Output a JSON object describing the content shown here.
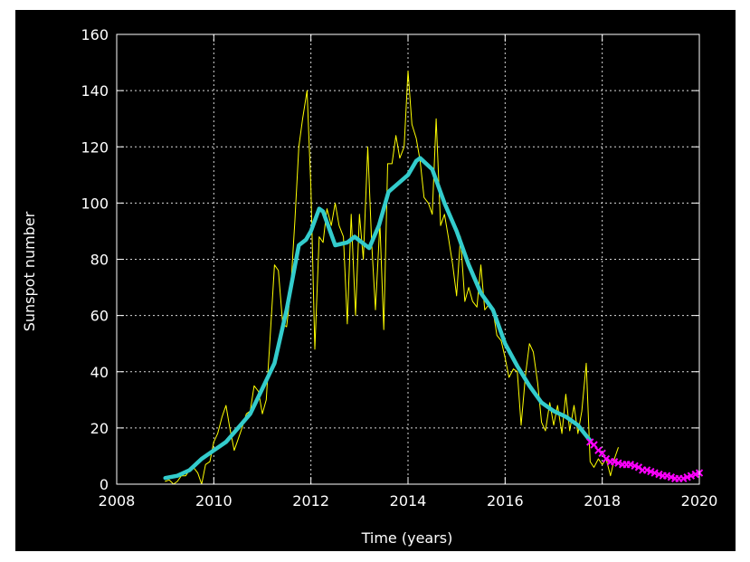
{
  "chart_data": {
    "type": "line",
    "title": "",
    "xlabel": "Time (years)",
    "ylabel": "Sunspot number",
    "xlim": [
      2008,
      2020
    ],
    "ylim": [
      0,
      160
    ],
    "grid": true,
    "x_ticks": [
      "2008",
      "2010",
      "2012",
      "2014",
      "2016",
      "2018",
      "2020"
    ],
    "y_ticks": [
      "0",
      "20",
      "40",
      "60",
      "80",
      "100",
      "120",
      "140",
      "160"
    ],
    "colors": {
      "background": "#000000",
      "axes": "#ffffff",
      "grid": "#ffffff"
    },
    "series": [
      {
        "style": "thin-line",
        "color": "#ffff00",
        "points": [
          [
            2009.0,
            1
          ],
          [
            2009.08,
            1.5
          ],
          [
            2009.17,
            0
          ],
          [
            2009.25,
            1
          ],
          [
            2009.33,
            3
          ],
          [
            2009.42,
            3
          ],
          [
            2009.5,
            5
          ],
          [
            2009.58,
            6
          ],
          [
            2009.67,
            4
          ],
          [
            2009.75,
            0
          ],
          [
            2009.83,
            7
          ],
          [
            2009.92,
            8
          ],
          [
            2010.0,
            15
          ],
          [
            2010.08,
            18
          ],
          [
            2010.17,
            24
          ],
          [
            2010.25,
            28
          ],
          [
            2010.33,
            20
          ],
          [
            2010.42,
            12
          ],
          [
            2010.5,
            16
          ],
          [
            2010.58,
            20
          ],
          [
            2010.67,
            25
          ],
          [
            2010.75,
            26
          ],
          [
            2010.83,
            35
          ],
          [
            2010.92,
            33
          ],
          [
            2011.0,
            25
          ],
          [
            2011.08,
            30
          ],
          [
            2011.17,
            55
          ],
          [
            2011.25,
            78
          ],
          [
            2011.33,
            76
          ],
          [
            2011.42,
            57
          ],
          [
            2011.5,
            56
          ],
          [
            2011.58,
            68
          ],
          [
            2011.67,
            94
          ],
          [
            2011.75,
            120
          ],
          [
            2011.83,
            130
          ],
          [
            2011.92,
            140
          ],
          [
            2012.0,
            105
          ],
          [
            2012.08,
            48
          ],
          [
            2012.17,
            88
          ],
          [
            2012.25,
            86
          ],
          [
            2012.33,
            98
          ],
          [
            2012.42,
            92
          ],
          [
            2012.5,
            100
          ],
          [
            2012.58,
            92
          ],
          [
            2012.67,
            88
          ],
          [
            2012.75,
            57
          ],
          [
            2012.83,
            96
          ],
          [
            2012.92,
            60
          ],
          [
            2013.0,
            96
          ],
          [
            2013.08,
            80
          ],
          [
            2013.17,
            120
          ],
          [
            2013.25,
            86
          ],
          [
            2013.33,
            62
          ],
          [
            2013.42,
            93
          ],
          [
            2013.5,
            55
          ],
          [
            2013.58,
            114
          ],
          [
            2013.67,
            114
          ],
          [
            2013.75,
            124
          ],
          [
            2013.83,
            116
          ],
          [
            2013.92,
            120
          ],
          [
            2014.0,
            147
          ],
          [
            2014.08,
            128
          ],
          [
            2014.17,
            123
          ],
          [
            2014.25,
            115
          ],
          [
            2014.33,
            102
          ],
          [
            2014.42,
            100
          ],
          [
            2014.5,
            96
          ],
          [
            2014.58,
            130
          ],
          [
            2014.67,
            92
          ],
          [
            2014.75,
            96
          ],
          [
            2014.83,
            88
          ],
          [
            2014.92,
            78
          ],
          [
            2015.0,
            67
          ],
          [
            2015.08,
            88
          ],
          [
            2015.17,
            65
          ],
          [
            2015.25,
            70
          ],
          [
            2015.33,
            65
          ],
          [
            2015.42,
            63
          ],
          [
            2015.5,
            78
          ],
          [
            2015.58,
            62
          ],
          [
            2015.67,
            64
          ],
          [
            2015.75,
            62
          ],
          [
            2015.83,
            53
          ],
          [
            2015.92,
            51
          ],
          [
            2016.0,
            45
          ],
          [
            2016.08,
            38
          ],
          [
            2016.17,
            41
          ],
          [
            2016.25,
            40
          ],
          [
            2016.33,
            21
          ],
          [
            2016.42,
            39
          ],
          [
            2016.5,
            50
          ],
          [
            2016.58,
            47
          ],
          [
            2016.67,
            36
          ],
          [
            2016.75,
            22
          ],
          [
            2016.83,
            19
          ],
          [
            2016.92,
            29
          ],
          [
            2017.0,
            21
          ],
          [
            2017.08,
            28
          ],
          [
            2017.17,
            18
          ],
          [
            2017.25,
            32
          ],
          [
            2017.33,
            19
          ],
          [
            2017.42,
            28
          ],
          [
            2017.5,
            18
          ],
          [
            2017.58,
            26
          ],
          [
            2017.67,
            43
          ],
          [
            2017.75,
            8
          ],
          [
            2017.83,
            6
          ],
          [
            2017.92,
            9
          ],
          [
            2018.0,
            7
          ],
          [
            2018.08,
            9
          ],
          [
            2018.17,
            3
          ],
          [
            2018.25,
            9
          ],
          [
            2018.33,
            13
          ]
        ]
      },
      {
        "style": "thick-smoothed",
        "color": "#33cccc",
        "points": [
          [
            2009.0,
            2.2
          ],
          [
            2009.25,
            3
          ],
          [
            2009.5,
            5
          ],
          [
            2009.75,
            9
          ],
          [
            2010.0,
            12
          ],
          [
            2010.25,
            15
          ],
          [
            2010.5,
            20
          ],
          [
            2010.75,
            25
          ],
          [
            2011.0,
            34
          ],
          [
            2011.25,
            43
          ],
          [
            2011.5,
            62
          ],
          [
            2011.75,
            85
          ],
          [
            2011.9,
            87
          ],
          [
            2012.0,
            90
          ],
          [
            2012.17,
            98
          ],
          [
            2012.25,
            97
          ],
          [
            2012.5,
            85
          ],
          [
            2012.75,
            86
          ],
          [
            2012.9,
            88
          ],
          [
            2013.2,
            84
          ],
          [
            2013.4,
            92
          ],
          [
            2013.6,
            104
          ],
          [
            2013.8,
            107
          ],
          [
            2014.0,
            110
          ],
          [
            2014.17,
            115
          ],
          [
            2014.25,
            116
          ],
          [
            2014.5,
            112
          ],
          [
            2014.75,
            100
          ],
          [
            2015.0,
            90
          ],
          [
            2015.25,
            78
          ],
          [
            2015.5,
            68
          ],
          [
            2015.75,
            62
          ],
          [
            2016.0,
            50
          ],
          [
            2016.25,
            42
          ],
          [
            2016.5,
            35
          ],
          [
            2016.75,
            29
          ],
          [
            2017.0,
            26
          ],
          [
            2017.25,
            24
          ],
          [
            2017.5,
            21
          ],
          [
            2017.75,
            15.5
          ]
        ]
      },
      {
        "style": "crosses",
        "color": "#ff00ff",
        "points": [
          [
            2017.75,
            15
          ],
          [
            2017.83,
            14
          ],
          [
            2017.92,
            12
          ],
          [
            2018.0,
            11
          ],
          [
            2018.08,
            9
          ],
          [
            2018.17,
            8
          ],
          [
            2018.25,
            8
          ],
          [
            2018.33,
            7.5
          ],
          [
            2018.42,
            7
          ],
          [
            2018.5,
            7
          ],
          [
            2018.58,
            7
          ],
          [
            2018.67,
            6.5
          ],
          [
            2018.75,
            6
          ],
          [
            2018.83,
            5
          ],
          [
            2018.92,
            5
          ],
          [
            2019.0,
            4.5
          ],
          [
            2019.08,
            4
          ],
          [
            2019.17,
            3.5
          ],
          [
            2019.25,
            3
          ],
          [
            2019.33,
            3
          ],
          [
            2019.42,
            2.5
          ],
          [
            2019.5,
            2
          ],
          [
            2019.58,
            2
          ],
          [
            2019.67,
            2
          ],
          [
            2019.75,
            2.5
          ],
          [
            2019.83,
            3
          ],
          [
            2019.92,
            3.5
          ],
          [
            2020.0,
            4
          ]
        ]
      }
    ]
  }
}
